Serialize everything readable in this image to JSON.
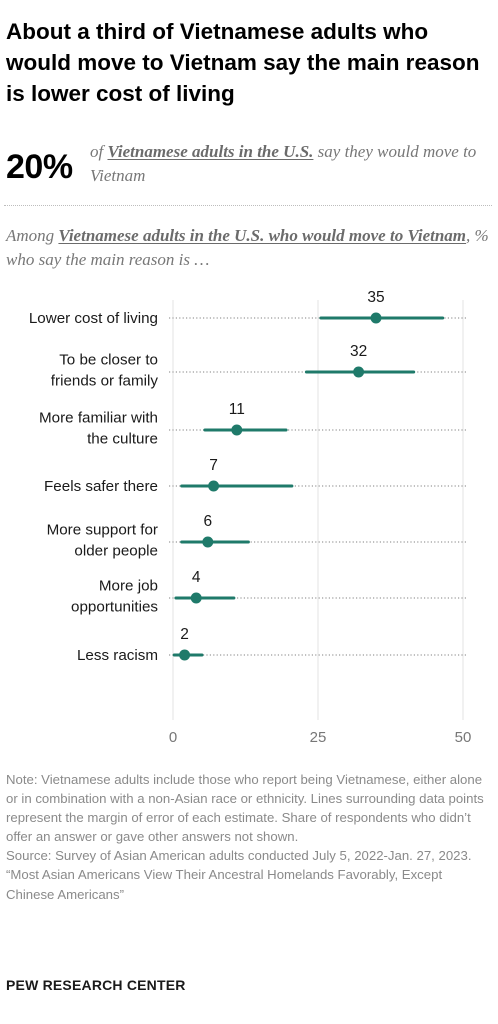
{
  "title": "About a third of Vietnamese adults who would move to Vietnam say the main reason is lower cost of living",
  "stat": {
    "value": "20%",
    "text_before": "of ",
    "text_underlined": "Vietnamese adults in the U.S.",
    "text_after": " say they would move to Vietnam"
  },
  "lead": {
    "before": "Among ",
    "underlined": "Vietnamese adults in the U.S. who would move to Vietnam",
    "after": ", % who say the main reason is …"
  },
  "chart_data": {
    "type": "dot",
    "xlim": [
      0,
      50
    ],
    "xticks": [
      0,
      25,
      50
    ],
    "color": "#1f7a6a",
    "grid": false,
    "categories": [
      {
        "label": [
          "Lower cost of living"
        ],
        "value": 35,
        "low": 25.5,
        "high": 46.5
      },
      {
        "label": [
          "To be closer to",
          "friends or family"
        ],
        "value": 32,
        "low": 23,
        "high": 41.5
      },
      {
        "label": [
          "More familiar with",
          "the culture"
        ],
        "value": 11,
        "low": 5.5,
        "high": 19.5
      },
      {
        "label": [
          "Feels safer there"
        ],
        "value": 7,
        "low": 1.5,
        "high": 20.5
      },
      {
        "label": [
          "More support for",
          "older people"
        ],
        "value": 6,
        "low": 1.5,
        "high": 13
      },
      {
        "label": [
          "More job",
          "opportunities"
        ],
        "value": 4,
        "low": 0.5,
        "high": 10.5
      },
      {
        "label": [
          "Less racism"
        ],
        "value": 2,
        "low": 0.2,
        "high": 5
      }
    ]
  },
  "notes": [
    "Note: Vietnamese adults include those who report being Vietnamese, either alone or in combination with a non-Asian race or ethnicity. Lines surrounding data points represent the margin of error of each estimate. Share of respondents who didn’t offer an answer or gave other answers not shown.",
    "Source: Survey of Asian American adults conducted July 5, 2022-Jan. 27, 2023.",
    "“Most Asian Americans View Their Ancestral Homelands Favorably, Except Chinese Americans”"
  ],
  "brand": "PEW RESEARCH CENTER"
}
